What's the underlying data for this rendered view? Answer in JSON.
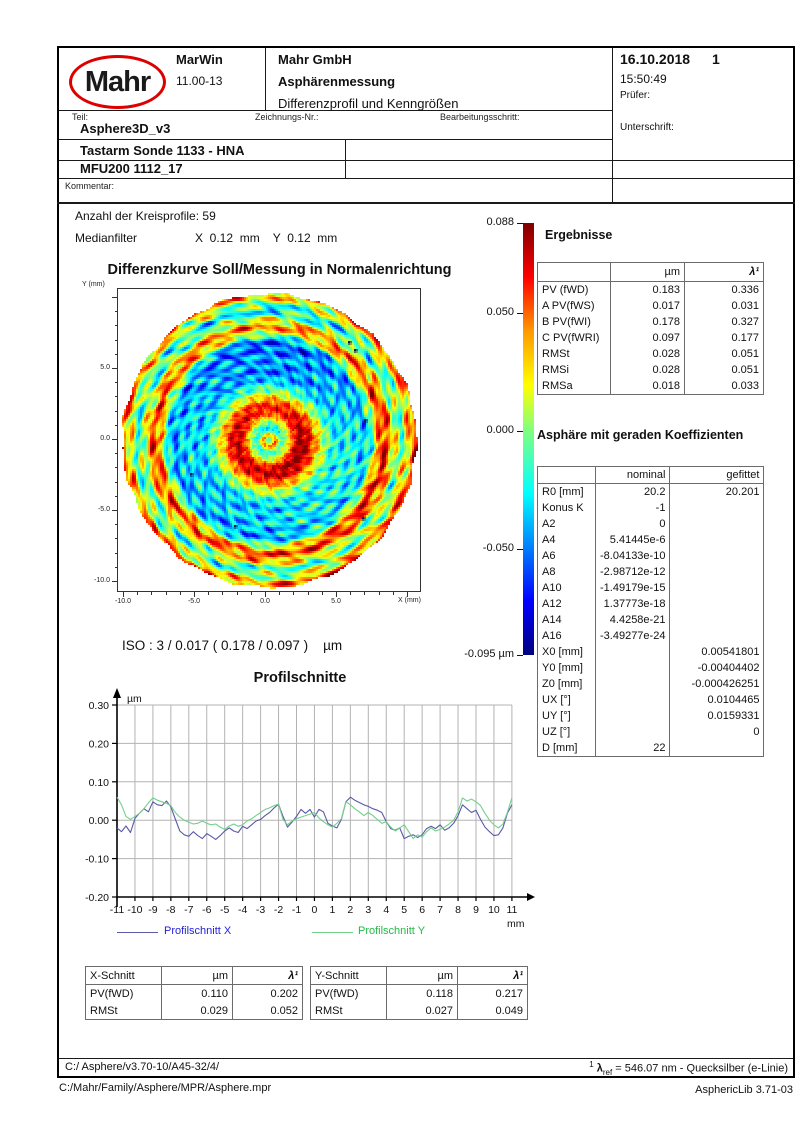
{
  "header": {
    "logo_text": "Mahr",
    "app_name": "MarWin",
    "app_version": "11.00-13",
    "company": "Mahr GmbH",
    "report_type": "Asphärenmessung",
    "report_subtitle": "Differenzprofil und Kenngrößen",
    "date": "16.10.2018",
    "page_number": "1",
    "time": "15:50:49",
    "pruefer_label": "Prüfer:",
    "unterschrift_label": "Unterschrift:",
    "teil_label": "Teil:",
    "teil_value": "Asphere3D_v3",
    "zeichnungs_label": "Zeichnungs-Nr.:",
    "bearbeitung_label": "Bearbeitungsschritt:",
    "probe_row": "Tastarm Sonde 1133 - HNA",
    "machine_row": "MFU200 1112_17",
    "kommentar_label": "Kommentar:"
  },
  "info": {
    "kreisprofile": "Anzahl der Kreisprofile: 59",
    "medianfilter_label": "Medianfilter",
    "medianfilter_value": "X  0.12  mm    Y  0.12  mm"
  },
  "iso_line": "ISO : 3 / 0.017 ( 0.178 / 0.097 )    µm",
  "ergebnisse": {
    "title": "Ergebnisse",
    "columns": [
      "",
      "µm",
      "λ¹"
    ],
    "rows": [
      [
        "PV (fWD)",
        "0.183",
        "0.336"
      ],
      [
        "A PV(fWS)",
        "0.017",
        "0.031"
      ],
      [
        "B PV(fWI)",
        "0.178",
        "0.327"
      ],
      [
        "C PV(fWRI)",
        "0.097",
        "0.177"
      ],
      [
        "RMSt",
        "0.028",
        "0.051"
      ],
      [
        "RMSi",
        "0.028",
        "0.051"
      ],
      [
        "RMSa",
        "0.018",
        "0.033"
      ]
    ]
  },
  "asphaere": {
    "title": "Asphäre mit geraden Koeffizienten",
    "columns": [
      "",
      "nominal",
      "gefittet"
    ],
    "rows": [
      [
        "R0 [mm]",
        "20.2",
        "20.201"
      ],
      [
        "Konus K",
        "-1",
        ""
      ],
      [
        "A2",
        "0",
        ""
      ],
      [
        "A4",
        "5.41445e-6",
        ""
      ],
      [
        "A6",
        "-8.04133e-10",
        ""
      ],
      [
        "A8",
        "-2.98712e-12",
        ""
      ],
      [
        "A10",
        "-1.49179e-15",
        ""
      ],
      [
        "A12",
        "1.37773e-18",
        ""
      ],
      [
        "A14",
        "4.4258e-21",
        ""
      ],
      [
        "A16",
        "-3.49277e-24",
        ""
      ],
      [
        "X0 [mm]",
        "",
        "0.00541801"
      ],
      [
        "Y0 [mm]",
        "",
        "-0.00404402"
      ],
      [
        "Z0 [mm]",
        "",
        "-0.000426251"
      ],
      [
        "UX [°]",
        "",
        "0.0104465"
      ],
      [
        "UY [°]",
        "",
        "0.0159331"
      ],
      [
        "UZ [°]",
        "",
        "0"
      ],
      [
        "D [mm]",
        "22",
        ""
      ]
    ]
  },
  "x_schnitt": {
    "columns": [
      "X-Schnitt",
      "µm",
      "λ¹"
    ],
    "rows": [
      [
        "PV(fWD)",
        "0.110",
        "0.202"
      ],
      [
        "RMSt",
        "0.029",
        "0.052"
      ]
    ]
  },
  "y_schnitt": {
    "columns": [
      "Y-Schnitt",
      "µm",
      "λ¹"
    ],
    "rows": [
      [
        "PV(fWD)",
        "0.118",
        "0.217"
      ],
      [
        "RMSt",
        "0.027",
        "0.049"
      ]
    ]
  },
  "footer": {
    "path1": "C:/ Asphere/v3.70-10/A45-32/4/",
    "lambda_sup": "1",
    "lambda_sym": "λ",
    "lambda_sub": "ref",
    "lambda_rest": " = 546.07 nm - Quecksilber (e-Linie)",
    "path2": "C:/Mahr/Family/Asphere/MPR/Asphere.mpr",
    "lib": "AsphericLib 3.71-03"
  },
  "colors": {
    "accent_red": "#dd0000",
    "profile_x_line": "#5a5aa8",
    "profile_x_label": "#2222dd",
    "profile_y_line": "#74cf8c",
    "profile_y_label": "#22bb44"
  },
  "chart_data": [
    {
      "type": "heatmap",
      "title": "Differenzkurve Soll/Messung in Normalenrichtung",
      "xlabel": "X (mm)",
      "ylabel": "Y (mm)",
      "xlim": [
        -10.4,
        10.7
      ],
      "ylim": [
        -10.6,
        10.6
      ],
      "x_ticks": [
        {
          "v": -10,
          "label": "-10.0"
        },
        {
          "v": -5,
          "label": "-5.0"
        },
        {
          "v": 0,
          "label": "0.0"
        },
        {
          "v": 5,
          "label": "5.0"
        }
      ],
      "y_ticks": [
        {
          "v": 5,
          "label": "5.0"
        },
        {
          "v": 0,
          "label": "0.0"
        },
        {
          "v": -5,
          "label": "-5.0"
        },
        {
          "v": -10,
          "label": "-10.0"
        }
      ],
      "colorbar": {
        "min": -0.095,
        "max": 0.088,
        "unit": "µm",
        "colormap": "jet",
        "ticks": [
          {
            "value": 0.088,
            "label": "0.088"
          },
          {
            "value": 0.05,
            "label": "0.050"
          },
          {
            "value": 0.0,
            "label": "0.000"
          },
          {
            "value": -0.05,
            "label": "-0.050"
          },
          {
            "value": -0.095,
            "label": "-0.095 µm"
          }
        ]
      },
      "radial_profile_um": [
        [
          0.0,
          -0.018
        ],
        [
          0.04,
          -0.02
        ],
        [
          0.09,
          -0.018
        ],
        [
          0.13,
          0.01
        ],
        [
          0.17,
          0.055
        ],
        [
          0.21,
          0.075
        ],
        [
          0.26,
          0.065
        ],
        [
          0.31,
          0.03
        ],
        [
          0.36,
          0.0
        ],
        [
          0.42,
          -0.028
        ],
        [
          0.48,
          -0.04
        ],
        [
          0.54,
          -0.03
        ],
        [
          0.6,
          -0.038
        ],
        [
          0.66,
          -0.045
        ],
        [
          0.7,
          -0.02
        ],
        [
          0.74,
          0.03
        ],
        [
          0.78,
          0.055
        ],
        [
          0.82,
          0.03
        ],
        [
          0.86,
          -0.005
        ],
        [
          0.9,
          -0.015
        ],
        [
          0.94,
          0.01
        ],
        [
          0.97,
          0.03
        ],
        [
          1.0,
          0.048
        ]
      ]
    },
    {
      "type": "line",
      "title": "Profilschnitte",
      "ylabel": "µm",
      "xlabel": "mm",
      "ylim": [
        -0.2,
        0.3
      ],
      "xlim": [
        -11,
        11
      ],
      "y_ticks": [
        0.3,
        0.2,
        0.1,
        0.0,
        -0.1,
        -0.2
      ],
      "x_ticks": [
        -11,
        -10,
        -9,
        -8,
        -7,
        -6,
        -5,
        -4,
        -3,
        -2,
        -1,
        0,
        1,
        2,
        3,
        4,
        5,
        6,
        7,
        8,
        9,
        10,
        11
      ],
      "legend_position": "bottom",
      "series": [
        {
          "name": "Profilschnitt X",
          "x_start": -11,
          "x_step": 0.25,
          "values": [
            -0.02,
            -0.03,
            -0.015,
            -0.032,
            0.005,
            0.018,
            0.03,
            0.022,
            0.048,
            0.04,
            0.038,
            0.05,
            0.035,
            0.003,
            -0.028,
            -0.038,
            -0.042,
            -0.03,
            -0.04,
            -0.048,
            -0.035,
            -0.042,
            -0.05,
            -0.04,
            -0.028,
            -0.02,
            -0.028,
            -0.032,
            -0.016,
            -0.022,
            -0.012,
            -0.002,
            0.002,
            0.012,
            0.02,
            0.032,
            0.042,
            0.01,
            -0.018,
            -0.005,
            0.01,
            0.028,
            0.018,
            0.028,
            0.008,
            0.028,
            0.022,
            -0.008,
            -0.015,
            -0.02,
            0.002,
            0.048,
            0.06,
            0.052,
            0.046,
            0.04,
            0.036,
            0.03,
            0.026,
            0.02,
            -0.004,
            -0.022,
            -0.026,
            -0.02,
            -0.048,
            -0.042,
            -0.038,
            -0.045,
            -0.038,
            -0.022,
            -0.016,
            -0.022,
            -0.012,
            -0.026,
            -0.02,
            -0.008,
            0.012,
            0.04,
            0.03,
            0.02,
            0.026,
            0.002,
            -0.018,
            -0.03,
            -0.04,
            -0.038,
            -0.02,
            0.018,
            0.04
          ]
        },
        {
          "name": "Profilschnitt Y",
          "x_start": -11,
          "x_step": 0.25,
          "values": [
            0.06,
            0.04,
            0.01,
            0.002,
            0.01,
            0.018,
            0.03,
            0.045,
            0.058,
            0.052,
            0.048,
            0.044,
            0.038,
            0.02,
            0.008,
            0.0,
            -0.005,
            -0.01,
            -0.008,
            -0.002,
            -0.008,
            -0.012,
            -0.01,
            -0.018,
            -0.024,
            -0.015,
            -0.01,
            -0.016,
            -0.012,
            -0.002,
            0.004,
            0.012,
            0.02,
            0.028,
            0.032,
            0.038,
            0.042,
            0.002,
            -0.012,
            -0.002,
            0.004,
            0.008,
            0.012,
            0.016,
            0.02,
            0.006,
            -0.004,
            -0.012,
            -0.018,
            -0.008,
            0.004,
            0.048,
            0.04,
            0.03,
            0.022,
            0.012,
            0.02,
            0.012,
            0.002,
            -0.008,
            -0.004,
            -0.018,
            -0.028,
            -0.02,
            -0.012,
            -0.03,
            -0.048,
            -0.038,
            -0.044,
            -0.03,
            -0.02,
            -0.028,
            -0.024,
            -0.018,
            -0.01,
            0.0,
            0.022,
            0.058,
            0.05,
            0.055,
            0.048,
            0.038,
            0.018,
            0.0,
            -0.012,
            -0.02,
            -0.01,
            0.02,
            0.058
          ]
        }
      ]
    }
  ]
}
